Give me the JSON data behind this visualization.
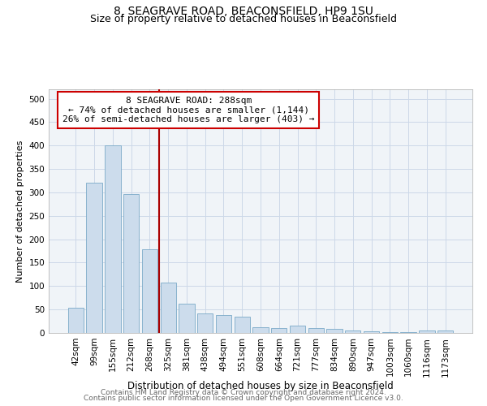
{
  "title1": "8, SEAGRAVE ROAD, BEACONSFIELD, HP9 1SU",
  "title2": "Size of property relative to detached houses in Beaconsfield",
  "xlabel": "Distribution of detached houses by size in Beaconsfield",
  "ylabel": "Number of detached properties",
  "categories": [
    "42sqm",
    "99sqm",
    "155sqm",
    "212sqm",
    "268sqm",
    "325sqm",
    "381sqm",
    "438sqm",
    "494sqm",
    "551sqm",
    "608sqm",
    "664sqm",
    "721sqm",
    "777sqm",
    "834sqm",
    "890sqm",
    "947sqm",
    "1003sqm",
    "1060sqm",
    "1116sqm",
    "1173sqm"
  ],
  "values": [
    53,
    320,
    400,
    297,
    178,
    107,
    63,
    41,
    38,
    35,
    12,
    11,
    15,
    10,
    8,
    5,
    3,
    1,
    1,
    5,
    5
  ],
  "bar_color": "#ccdcec",
  "bar_edge_color": "#7aaac8",
  "red_line_x": 4.5,
  "annotation_line1": "8 SEAGRAVE ROAD: 288sqm",
  "annotation_line2": "← 74% of detached houses are smaller (1,144)",
  "annotation_line3": "26% of semi-detached houses are larger (403) →",
  "annotation_box_color": "white",
  "annotation_box_edge": "#cc0000",
  "red_line_color": "#aa0000",
  "footnote1": "Contains HM Land Registry data © Crown copyright and database right 2024.",
  "footnote2": "Contains public sector information licensed under the Open Government Licence v3.0.",
  "ylim": [
    0,
    520
  ],
  "yticks": [
    0,
    50,
    100,
    150,
    200,
    250,
    300,
    350,
    400,
    450,
    500
  ],
  "grid_color": "#ccd8e8",
  "bg_color": "#f0f4f8",
  "title1_fontsize": 10,
  "title2_fontsize": 9,
  "xlabel_fontsize": 8.5,
  "ylabel_fontsize": 8,
  "tick_fontsize": 7.5,
  "annotation_fontsize": 8,
  "footnote_fontsize": 6.5
}
